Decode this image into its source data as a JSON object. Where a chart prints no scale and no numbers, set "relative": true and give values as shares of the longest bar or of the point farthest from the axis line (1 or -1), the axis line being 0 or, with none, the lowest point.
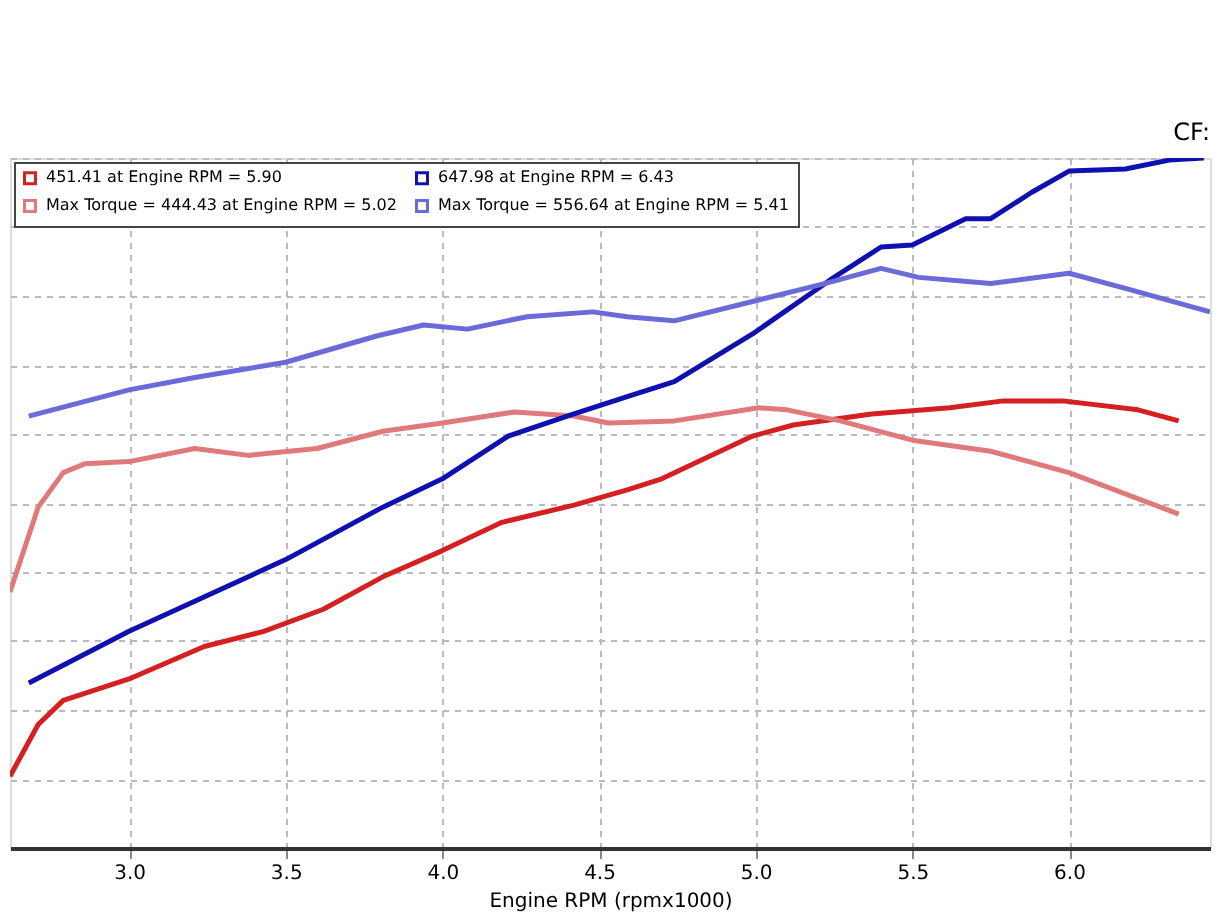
{
  "chart_data": {
    "type": "line",
    "relative": true,
    "xlabel": "Engine RPM (rpmx1000)",
    "annotations": [
      "CF:"
    ],
    "xlim": [
      2.62,
      6.45
    ],
    "xticks": [
      {
        "value": 3,
        "label": "3.0"
      },
      3.5,
      {
        "value": 4,
        "label": "4.0"
      },
      4.5,
      {
        "value": 5,
        "label": "5.0"
      },
      5.5,
      {
        "value": 6,
        "label": "6.0"
      }
    ],
    "tick_labels": "x",
    "grid": true,
    "legend": "top left",
    "line_style": "solid",
    "marker": "none",
    "series": [
      {
        "name": "451.41 at Engine RPM = 5.90",
        "color": "#d42020",
        "x": [
          2.62,
          2.71,
          2.79,
          3.0,
          3.24,
          3.43,
          3.62,
          3.81,
          4.0,
          4.19,
          4.42,
          4.59,
          4.7,
          4.99,
          5.12,
          5.37,
          5.62,
          5.79,
          5.98,
          6.22,
          6.35
        ],
        "values": [
          0.104,
          0.179,
          0.214,
          0.245,
          0.292,
          0.314,
          0.346,
          0.393,
          0.431,
          0.472,
          0.497,
          0.519,
          0.535,
          0.597,
          0.613,
          0.629,
          0.638,
          0.648,
          0.648,
          0.635,
          0.619
        ]
      },
      {
        "name": "Max Torque = 444.43 at Engine RPM = 5.02",
        "color": "#e07a7a",
        "x": [
          2.62,
          2.71,
          2.79,
          2.86,
          3.0,
          3.21,
          3.38,
          3.6,
          3.81,
          4.0,
          4.23,
          4.42,
          4.53,
          4.74,
          5.01,
          5.1,
          5.27,
          5.5,
          5.75,
          6.0,
          6.35
        ],
        "values": [
          0.371,
          0.494,
          0.544,
          0.557,
          0.56,
          0.579,
          0.569,
          0.579,
          0.604,
          0.616,
          0.632,
          0.626,
          0.616,
          0.619,
          0.638,
          0.635,
          0.619,
          0.591,
          0.575,
          0.544,
          0.484
        ]
      },
      {
        "name": "647.98 at Engine RPM = 6.43",
        "color": "#1010b0",
        "x": [
          2.68,
          3.0,
          3.5,
          3.81,
          4.0,
          4.21,
          4.42,
          4.59,
          4.74,
          4.99,
          5.24,
          5.4,
          5.5,
          5.67,
          5.75,
          5.88,
          6.0,
          6.18,
          6.32,
          6.43
        ],
        "values": [
          0.239,
          0.314,
          0.418,
          0.494,
          0.535,
          0.597,
          0.629,
          0.654,
          0.676,
          0.745,
          0.824,
          0.871,
          0.874,
          0.912,
          0.912,
          0.95,
          0.981,
          0.984,
          0.997,
          1.0
        ]
      },
      {
        "name": "Max Torque = 556.64 at Engine RPM = 5.41",
        "color": "#6a6ad8",
        "x": [
          2.68,
          3.0,
          3.21,
          3.5,
          3.79,
          3.94,
          4.08,
          4.27,
          4.48,
          4.59,
          4.74,
          4.99,
          5.22,
          5.4,
          5.52,
          5.75,
          6.0,
          6.18,
          6.45
        ],
        "values": [
          0.626,
          0.664,
          0.682,
          0.704,
          0.742,
          0.758,
          0.752,
          0.77,
          0.777,
          0.77,
          0.764,
          0.792,
          0.818,
          0.84,
          0.827,
          0.818,
          0.833,
          0.811,
          0.777
        ]
      }
    ]
  }
}
